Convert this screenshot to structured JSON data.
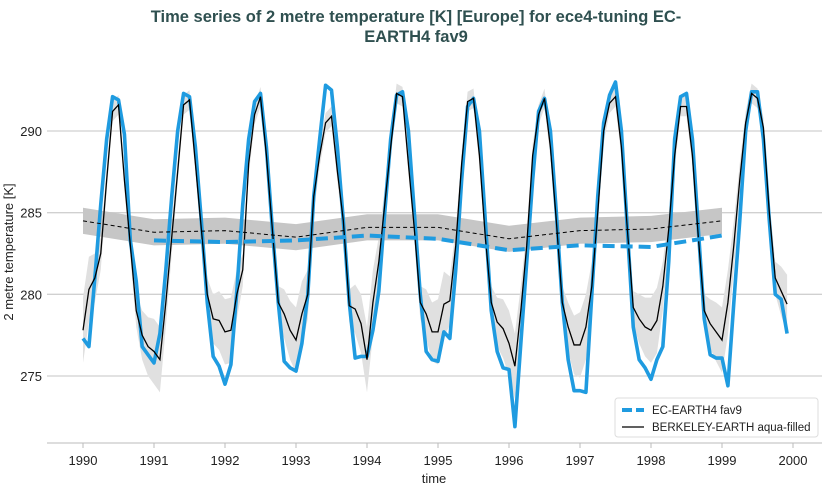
{
  "chart_data": {
    "type": "line",
    "title_line1": "Time series of 2 metre temperature [K] [Europe] for ece4-tuning EC-",
    "title_line2": "EARTH4 fav9",
    "xlabel": "time",
    "ylabel": "2 metre temperature [K]",
    "xlim": [
      1989.5,
      2000.4
    ],
    "ylim": [
      270.9,
      294.2
    ],
    "xticks": [
      "1990",
      "1991",
      "1992",
      "1993",
      "1994",
      "1995",
      "1996",
      "1997",
      "1998",
      "1999",
      "2000"
    ],
    "yticks": [
      "275",
      "280",
      "285",
      "290"
    ],
    "grid": "horizontal",
    "legend_position": "lower-right",
    "colors": {
      "model": "#1f9be0",
      "obs": "#000000",
      "obs_band": "#e0e0e0",
      "runmean_band": "#c6c6c6",
      "title": "#2f5050"
    },
    "monthly_start_year": 1990,
    "series": [
      {
        "name": "EC-EARTH4 fav9",
        "style": "thick-solid-blue",
        "values": [
          277.3,
          276.8,
          281.0,
          285.5,
          289.5,
          292.1,
          291.9,
          289.8,
          283.3,
          280.8,
          276.8,
          276.3,
          275.8,
          277.6,
          281.5,
          286.0,
          290.0,
          292.3,
          292.1,
          289.0,
          284.5,
          279.5,
          276.2,
          275.6,
          274.5,
          275.7,
          280.2,
          285.5,
          289.5,
          291.8,
          292.3,
          289.0,
          284.0,
          279.5,
          275.9,
          275.5,
          275.3,
          277.0,
          280.0,
          286.0,
          289.5,
          292.8,
          292.5,
          289.0,
          284.5,
          279.5,
          276.1,
          276.2,
          276.2,
          277.8,
          280.2,
          285.0,
          289.5,
          292.2,
          292.4,
          290.0,
          285.0,
          280.0,
          276.5,
          276.0,
          275.9,
          277.7,
          277.3,
          281.5,
          287.0,
          291.5,
          292.0,
          290.0,
          284.5,
          279.0,
          276.5,
          275.5,
          275.4,
          271.9,
          277.0,
          282.0,
          287.0,
          291.2,
          292.0,
          290.0,
          285.0,
          279.5,
          276.0,
          274.1,
          274.1,
          274.0,
          280.0,
          286.0,
          290.5,
          292.2,
          293.0,
          290.0,
          284.0,
          278.0,
          276.0,
          275.5,
          274.8,
          276.0,
          276.8,
          282.0,
          289.5,
          292.1,
          292.3,
          289.5,
          284.0,
          278.5,
          276.3,
          276.1,
          276.1,
          274.4,
          279.5,
          284.5,
          290.0,
          292.4,
          292.4,
          289.5,
          284.5,
          280.0,
          279.7,
          277.6
        ]
      },
      {
        "name": "BERKELEY-EARTH aqua-filled",
        "style": "thin-solid-black",
        "values": [
          277.8,
          280.3,
          281.0,
          282.5,
          287.0,
          291.2,
          291.6,
          287.0,
          283.0,
          279.0,
          277.5,
          276.8,
          276.5,
          276.0,
          279.5,
          283.5,
          287.5,
          291.6,
          291.9,
          288.0,
          284.0,
          280.0,
          278.5,
          278.4,
          277.7,
          277.8,
          280.0,
          281.5,
          288.0,
          291.0,
          292.1,
          288.5,
          284.0,
          279.5,
          278.8,
          277.8,
          277.2,
          278.8,
          280.0,
          286.0,
          288.5,
          290.5,
          290.9,
          287.5,
          284.5,
          279.3,
          279.1,
          278.2,
          276.0,
          279.5,
          282.0,
          285.5,
          289.0,
          292.3,
          292.1,
          288.0,
          284.0,
          279.5,
          278.8,
          277.7,
          277.7,
          279.4,
          279.6,
          283.0,
          288.0,
          291.8,
          292.0,
          288.5,
          283.5,
          279.5,
          278.3,
          277.9,
          277.0,
          275.6,
          279.0,
          283.0,
          288.5,
          291.0,
          292.0,
          289.0,
          284.5,
          279.5,
          278.0,
          276.9,
          276.9,
          278.0,
          280.5,
          285.0,
          290.0,
          291.7,
          292.1,
          289.0,
          284.0,
          279.2,
          278.5,
          278.0,
          277.8,
          278.4,
          280.5,
          284.0,
          288.5,
          291.5,
          291.5,
          288.5,
          283.5,
          279.0,
          278.2,
          277.7,
          277.2,
          279.5,
          283.0,
          287.0,
          290.5,
          292.3,
          292.0,
          290.2,
          285.0,
          281.0,
          280.2,
          279.4
        ]
      }
    ],
    "obs_band_halfwidth_by_month": [
      2.0,
      2.0,
      1.5,
      1.0,
      0.7,
      0.6,
      0.6,
      0.6,
      0.7,
      1.0,
      1.5,
      1.8
    ],
    "running_mean": {
      "model": {
        "x": [
          1991,
          1992,
          1993,
          1994,
          1995,
          1996,
          1997,
          1998,
          1999
        ],
        "y": [
          283.3,
          283.2,
          283.3,
          283.6,
          283.4,
          282.7,
          283.0,
          282.9,
          283.6
        ]
      },
      "obs": {
        "x": [
          1990,
          1991,
          1992,
          1993,
          1994,
          1995,
          1996,
          1997,
          1998,
          1999
        ],
        "y": [
          284.5,
          283.8,
          283.9,
          283.5,
          284.1,
          284.1,
          283.4,
          283.9,
          284.0,
          284.5
        ]
      },
      "obs_band_halfwidth": 0.8
    }
  }
}
